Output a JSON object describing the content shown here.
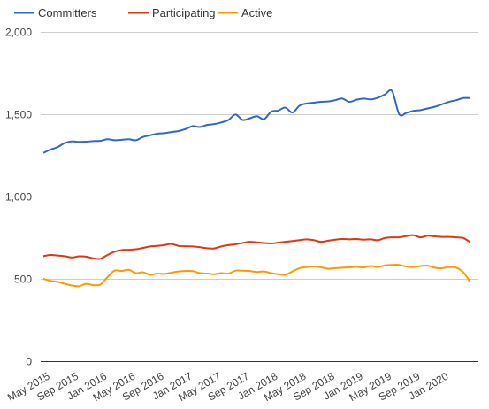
{
  "chart_data": {
    "type": "line",
    "title": "",
    "xlabel": "",
    "ylabel": "",
    "ylim": [
      0,
      2000
    ],
    "y_ticks": [
      0,
      500,
      1000,
      1500,
      2000
    ],
    "y_tick_labels": [
      "0",
      "500",
      "1,000",
      "1,500",
      "2,000"
    ],
    "x_range": [
      "2015-05",
      "2020-06"
    ],
    "x_ticks": [
      "2015-05",
      "2015-09",
      "2016-01",
      "2016-05",
      "2016-09",
      "2017-01",
      "2017-05",
      "2017-09",
      "2018-01",
      "2018-05",
      "2018-09",
      "2019-01",
      "2019-05",
      "2019-09",
      "2020-01"
    ],
    "x_tick_labels": [
      "May 2015",
      "Sep 2015",
      "Jan 2016",
      "May 2016",
      "Sep 2016",
      "Jan 2017",
      "May 2017",
      "Sep 2017",
      "Jan 2018",
      "May 2018",
      "Sep 2018",
      "Jan 2019",
      "May 2019",
      "Sep 2019",
      "Jan 2020"
    ],
    "grid": "horizontal",
    "legend_position": "top-left",
    "series": [
      {
        "name": "Committers",
        "color": "#3366cc",
        "points": [
          [
            "2015-05",
            1265
          ],
          [
            "2015-06",
            1285
          ],
          [
            "2015-07",
            1300
          ],
          [
            "2015-08",
            1325
          ],
          [
            "2015-09",
            1335
          ],
          [
            "2015-10",
            1332
          ],
          [
            "2015-11",
            1333
          ],
          [
            "2015-12",
            1337
          ],
          [
            "2016-01",
            1338
          ],
          [
            "2016-02",
            1348
          ],
          [
            "2016-03",
            1342
          ],
          [
            "2016-04",
            1345
          ],
          [
            "2016-05",
            1348
          ],
          [
            "2016-06",
            1342
          ],
          [
            "2016-07",
            1362
          ],
          [
            "2016-08",
            1372
          ],
          [
            "2016-09",
            1382
          ],
          [
            "2016-10",
            1385
          ],
          [
            "2016-11",
            1392
          ],
          [
            "2016-12",
            1398
          ],
          [
            "2017-01",
            1410
          ],
          [
            "2017-02",
            1428
          ],
          [
            "2017-03",
            1422
          ],
          [
            "2017-04",
            1435
          ],
          [
            "2017-05",
            1440
          ],
          [
            "2017-06",
            1450
          ],
          [
            "2017-07",
            1465
          ],
          [
            "2017-08",
            1498
          ],
          [
            "2017-09",
            1465
          ],
          [
            "2017-10",
            1475
          ],
          [
            "2017-11",
            1488
          ],
          [
            "2017-12",
            1470
          ],
          [
            "2018-01",
            1515
          ],
          [
            "2018-02",
            1522
          ],
          [
            "2018-03",
            1540
          ],
          [
            "2018-04",
            1510
          ],
          [
            "2018-05",
            1552
          ],
          [
            "2018-06",
            1565
          ],
          [
            "2018-07",
            1570
          ],
          [
            "2018-08",
            1575
          ],
          [
            "2018-09",
            1577
          ],
          [
            "2018-10",
            1585
          ],
          [
            "2018-11",
            1595
          ],
          [
            "2018-12",
            1575
          ],
          [
            "2019-01",
            1588
          ],
          [
            "2019-02",
            1595
          ],
          [
            "2019-03",
            1590
          ],
          [
            "2019-04",
            1600
          ],
          [
            "2019-05",
            1620
          ],
          [
            "2019-06",
            1640
          ],
          [
            "2019-07",
            1500
          ],
          [
            "2019-08",
            1508
          ],
          [
            "2019-09",
            1520
          ],
          [
            "2019-10",
            1525
          ],
          [
            "2019-11",
            1535
          ],
          [
            "2019-12",
            1545
          ],
          [
            "2020-01",
            1560
          ],
          [
            "2020-02",
            1575
          ],
          [
            "2020-03",
            1585
          ],
          [
            "2020-04",
            1598
          ],
          [
            "2020-05",
            1598
          ]
        ]
      },
      {
        "name": "Participating",
        "color": "#dc3912",
        "points": [
          [
            "2015-05",
            638
          ],
          [
            "2015-06",
            645
          ],
          [
            "2015-07",
            642
          ],
          [
            "2015-08",
            638
          ],
          [
            "2015-09",
            630
          ],
          [
            "2015-10",
            637
          ],
          [
            "2015-11",
            635
          ],
          [
            "2015-12",
            625
          ],
          [
            "2016-01",
            622
          ],
          [
            "2016-02",
            645
          ],
          [
            "2016-03",
            665
          ],
          [
            "2016-04",
            675
          ],
          [
            "2016-05",
            677
          ],
          [
            "2016-06",
            680
          ],
          [
            "2016-07",
            688
          ],
          [
            "2016-08",
            697
          ],
          [
            "2016-09",
            700
          ],
          [
            "2016-10",
            705
          ],
          [
            "2016-11",
            712
          ],
          [
            "2016-12",
            700
          ],
          [
            "2017-01",
            698
          ],
          [
            "2017-02",
            697
          ],
          [
            "2017-03",
            692
          ],
          [
            "2017-04",
            686
          ],
          [
            "2017-05",
            685
          ],
          [
            "2017-06",
            697
          ],
          [
            "2017-07",
            705
          ],
          [
            "2017-08",
            710
          ],
          [
            "2017-09",
            718
          ],
          [
            "2017-10",
            725
          ],
          [
            "2017-11",
            722
          ],
          [
            "2017-12",
            718
          ],
          [
            "2018-01",
            715
          ],
          [
            "2018-02",
            720
          ],
          [
            "2018-03",
            725
          ],
          [
            "2018-04",
            730
          ],
          [
            "2018-05",
            735
          ],
          [
            "2018-06",
            740
          ],
          [
            "2018-07",
            735
          ],
          [
            "2018-08",
            725
          ],
          [
            "2018-09",
            732
          ],
          [
            "2018-10",
            738
          ],
          [
            "2018-11",
            742
          ],
          [
            "2018-12",
            740
          ],
          [
            "2019-01",
            742
          ],
          [
            "2019-02",
            738
          ],
          [
            "2019-03",
            740
          ],
          [
            "2019-04",
            735
          ],
          [
            "2019-05",
            748
          ],
          [
            "2019-06",
            752
          ],
          [
            "2019-07",
            752
          ],
          [
            "2019-08",
            760
          ],
          [
            "2019-09",
            765
          ],
          [
            "2019-10",
            752
          ],
          [
            "2019-11",
            762
          ],
          [
            "2019-12",
            758
          ],
          [
            "2020-01",
            755
          ],
          [
            "2020-02",
            755
          ],
          [
            "2020-03",
            752
          ],
          [
            "2020-04",
            748
          ],
          [
            "2020-05",
            722
          ]
        ]
      },
      {
        "name": "Active",
        "color": "#ff9900",
        "points": [
          [
            "2015-05",
            500
          ],
          [
            "2015-06",
            488
          ],
          [
            "2015-07",
            482
          ],
          [
            "2015-08",
            470
          ],
          [
            "2015-09",
            460
          ],
          [
            "2015-10",
            455
          ],
          [
            "2015-11",
            470
          ],
          [
            "2015-12",
            462
          ],
          [
            "2016-01",
            465
          ],
          [
            "2016-02",
            510
          ],
          [
            "2016-03",
            550
          ],
          [
            "2016-04",
            548
          ],
          [
            "2016-05",
            555
          ],
          [
            "2016-06",
            535
          ],
          [
            "2016-07",
            540
          ],
          [
            "2016-08",
            525
          ],
          [
            "2016-09",
            532
          ],
          [
            "2016-10",
            530
          ],
          [
            "2016-11",
            538
          ],
          [
            "2016-12",
            545
          ],
          [
            "2017-01",
            548
          ],
          [
            "2017-02",
            547
          ],
          [
            "2017-03",
            535
          ],
          [
            "2017-04",
            532
          ],
          [
            "2017-05",
            528
          ],
          [
            "2017-06",
            535
          ],
          [
            "2017-07",
            532
          ],
          [
            "2017-08",
            550
          ],
          [
            "2017-09",
            550
          ],
          [
            "2017-10",
            548
          ],
          [
            "2017-11",
            542
          ],
          [
            "2017-12",
            545
          ],
          [
            "2018-01",
            535
          ],
          [
            "2018-02",
            528
          ],
          [
            "2018-03",
            525
          ],
          [
            "2018-04",
            545
          ],
          [
            "2018-05",
            565
          ],
          [
            "2018-06",
            572
          ],
          [
            "2018-07",
            575
          ],
          [
            "2018-08",
            570
          ],
          [
            "2018-09",
            562
          ],
          [
            "2018-10",
            565
          ],
          [
            "2018-11",
            568
          ],
          [
            "2018-12",
            570
          ],
          [
            "2019-01",
            573
          ],
          [
            "2019-02",
            570
          ],
          [
            "2019-03",
            578
          ],
          [
            "2019-04",
            572
          ],
          [
            "2019-05",
            582
          ],
          [
            "2019-06",
            585
          ],
          [
            "2019-07",
            585
          ],
          [
            "2019-08",
            575
          ],
          [
            "2019-09",
            572
          ],
          [
            "2019-10",
            578
          ],
          [
            "2019-11",
            580
          ],
          [
            "2019-12",
            568
          ],
          [
            "2020-01",
            565
          ],
          [
            "2020-02",
            572
          ],
          [
            "2020-03",
            568
          ],
          [
            "2020-04",
            540
          ],
          [
            "2020-05",
            480
          ]
        ]
      }
    ]
  }
}
